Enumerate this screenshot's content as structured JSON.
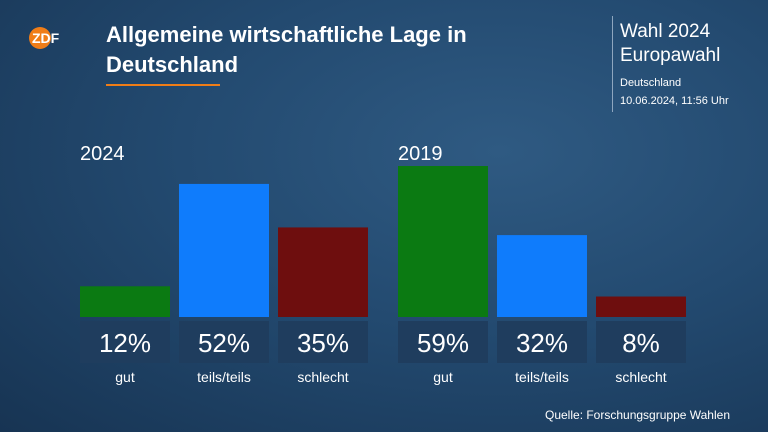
{
  "header": {
    "title": "Allgemeine wirtschaftliche Lage in Deutschland",
    "logo_text": "ZDF"
  },
  "info": {
    "line1": "Wahl 2024",
    "line2": "Europawahl",
    "line3": "Deutschland",
    "line4": "10.06.2024, 11:56 Uhr"
  },
  "footer": {
    "source": "Quelle: Forschungsgruppe Wahlen"
  },
  "colors": {
    "gut": "#0b7a12",
    "teils": "#0f7cfc",
    "schlecht": "#6e0e0e",
    "label_box": "#1f3d5e",
    "accent": "#f07d17"
  },
  "chart_data": [
    {
      "type": "bar",
      "title": "2024",
      "categories": [
        "gut",
        "teils/teils",
        "schlecht"
      ],
      "values": [
        12,
        52,
        35
      ],
      "value_labels": [
        "12%",
        "52%",
        "35%"
      ],
      "colors": [
        "#0b7a12",
        "#0f7cfc",
        "#6e0e0e"
      ],
      "ylim": [
        0,
        59
      ]
    },
    {
      "type": "bar",
      "title": "2019",
      "categories": [
        "gut",
        "teils/teils",
        "schlecht"
      ],
      "values": [
        59,
        32,
        8
      ],
      "value_labels": [
        "59%",
        "32%",
        "8%"
      ],
      "colors": [
        "#0b7a12",
        "#0f7cfc",
        "#6e0e0e"
      ],
      "ylim": [
        0,
        59
      ]
    }
  ]
}
